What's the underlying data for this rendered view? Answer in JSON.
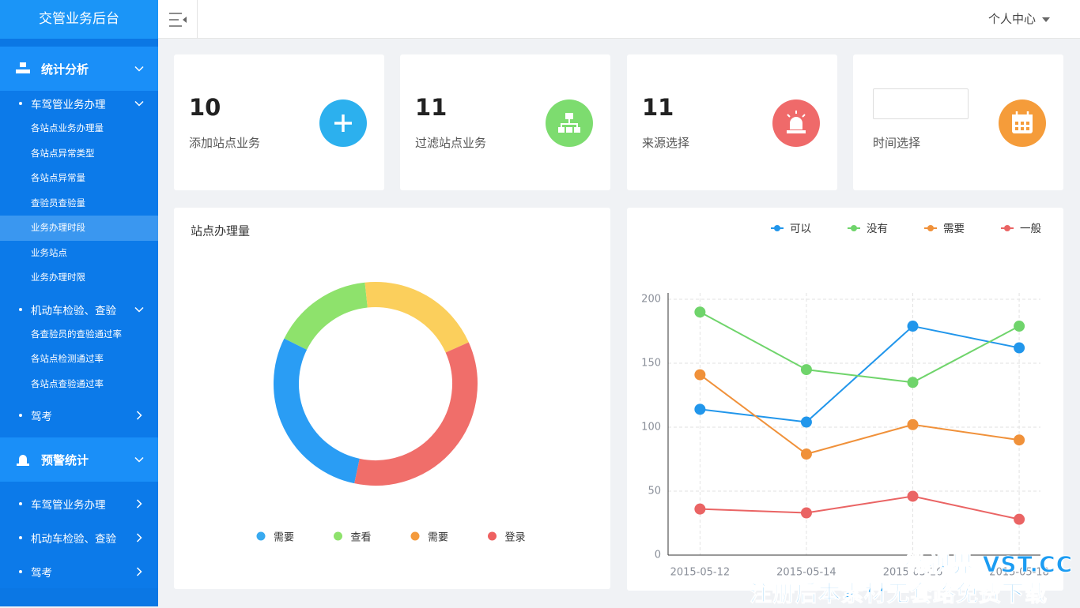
{
  "sidebar": {
    "title": "交管业务后台",
    "groups": [
      {
        "label": "统计分析",
        "submenus": [
          {
            "label": "车驾管业务办理",
            "items": [
              "各站点业务办理量",
              "各站点异常类型",
              "各站点异常量",
              "查验员查验量",
              "业务办理时段",
              "业务站点",
              "业务办理时限"
            ]
          },
          {
            "label": "机动车检验、查验",
            "items": [
              "各查验员的查验通过率",
              "各站点检测通过率",
              "各站点查验通过率"
            ]
          },
          {
            "label": "驾考"
          }
        ]
      },
      {
        "label": "预警统计",
        "submenus": [
          {
            "label": "车驾管业务办理"
          },
          {
            "label": "机动车检验、查验"
          },
          {
            "label": "驾考"
          }
        ]
      }
    ]
  },
  "header": {
    "user_menu": "个人中心"
  },
  "stats": [
    {
      "value": 10,
      "label": "添加站点业务"
    },
    {
      "value": 11,
      "label": "过滤站点业务"
    },
    {
      "value": 11,
      "label": "来源选择"
    },
    {
      "label": "时间选择"
    }
  ],
  "chart_data": [
    {
      "type": "donut",
      "title": "站点办理量",
      "categories": [
        "需要",
        "查看",
        "需要",
        "登录"
      ],
      "values": [
        29,
        16,
        20,
        35
      ],
      "colors": [
        "#2a9df4",
        "#8ee26c",
        "#fbcf5c",
        "#f06e6a"
      ],
      "legend_colors": [
        "#38aaf0",
        "#8ee26c",
        "#f49a3c",
        "#ee6161"
      ]
    },
    {
      "type": "line",
      "categories": [
        "2015-05-12",
        "2015-05-14",
        "2015-05-16",
        "2015-05-18"
      ],
      "series": [
        {
          "name": "可以",
          "color": "#2196eb",
          "values": [
            114,
            104,
            179,
            162
          ]
        },
        {
          "name": "没有",
          "color": "#6fd46b",
          "values": [
            190,
            145,
            135,
            179
          ]
        },
        {
          "name": "需要",
          "color": "#f0913a",
          "values": [
            141,
            79,
            102,
            90
          ]
        },
        {
          "name": "一般",
          "color": "#ea6464",
          "values": [
            36,
            33,
            46,
            28
          ]
        }
      ],
      "ylim": [
        0,
        200
      ],
      "yticks": [
        0,
        50,
        100,
        150,
        200
      ],
      "grid": true,
      "legend": "top-right"
    }
  ],
  "watermark": [
    "微视界 VST.CC",
    "注册后本素材无套路免费下载"
  ]
}
